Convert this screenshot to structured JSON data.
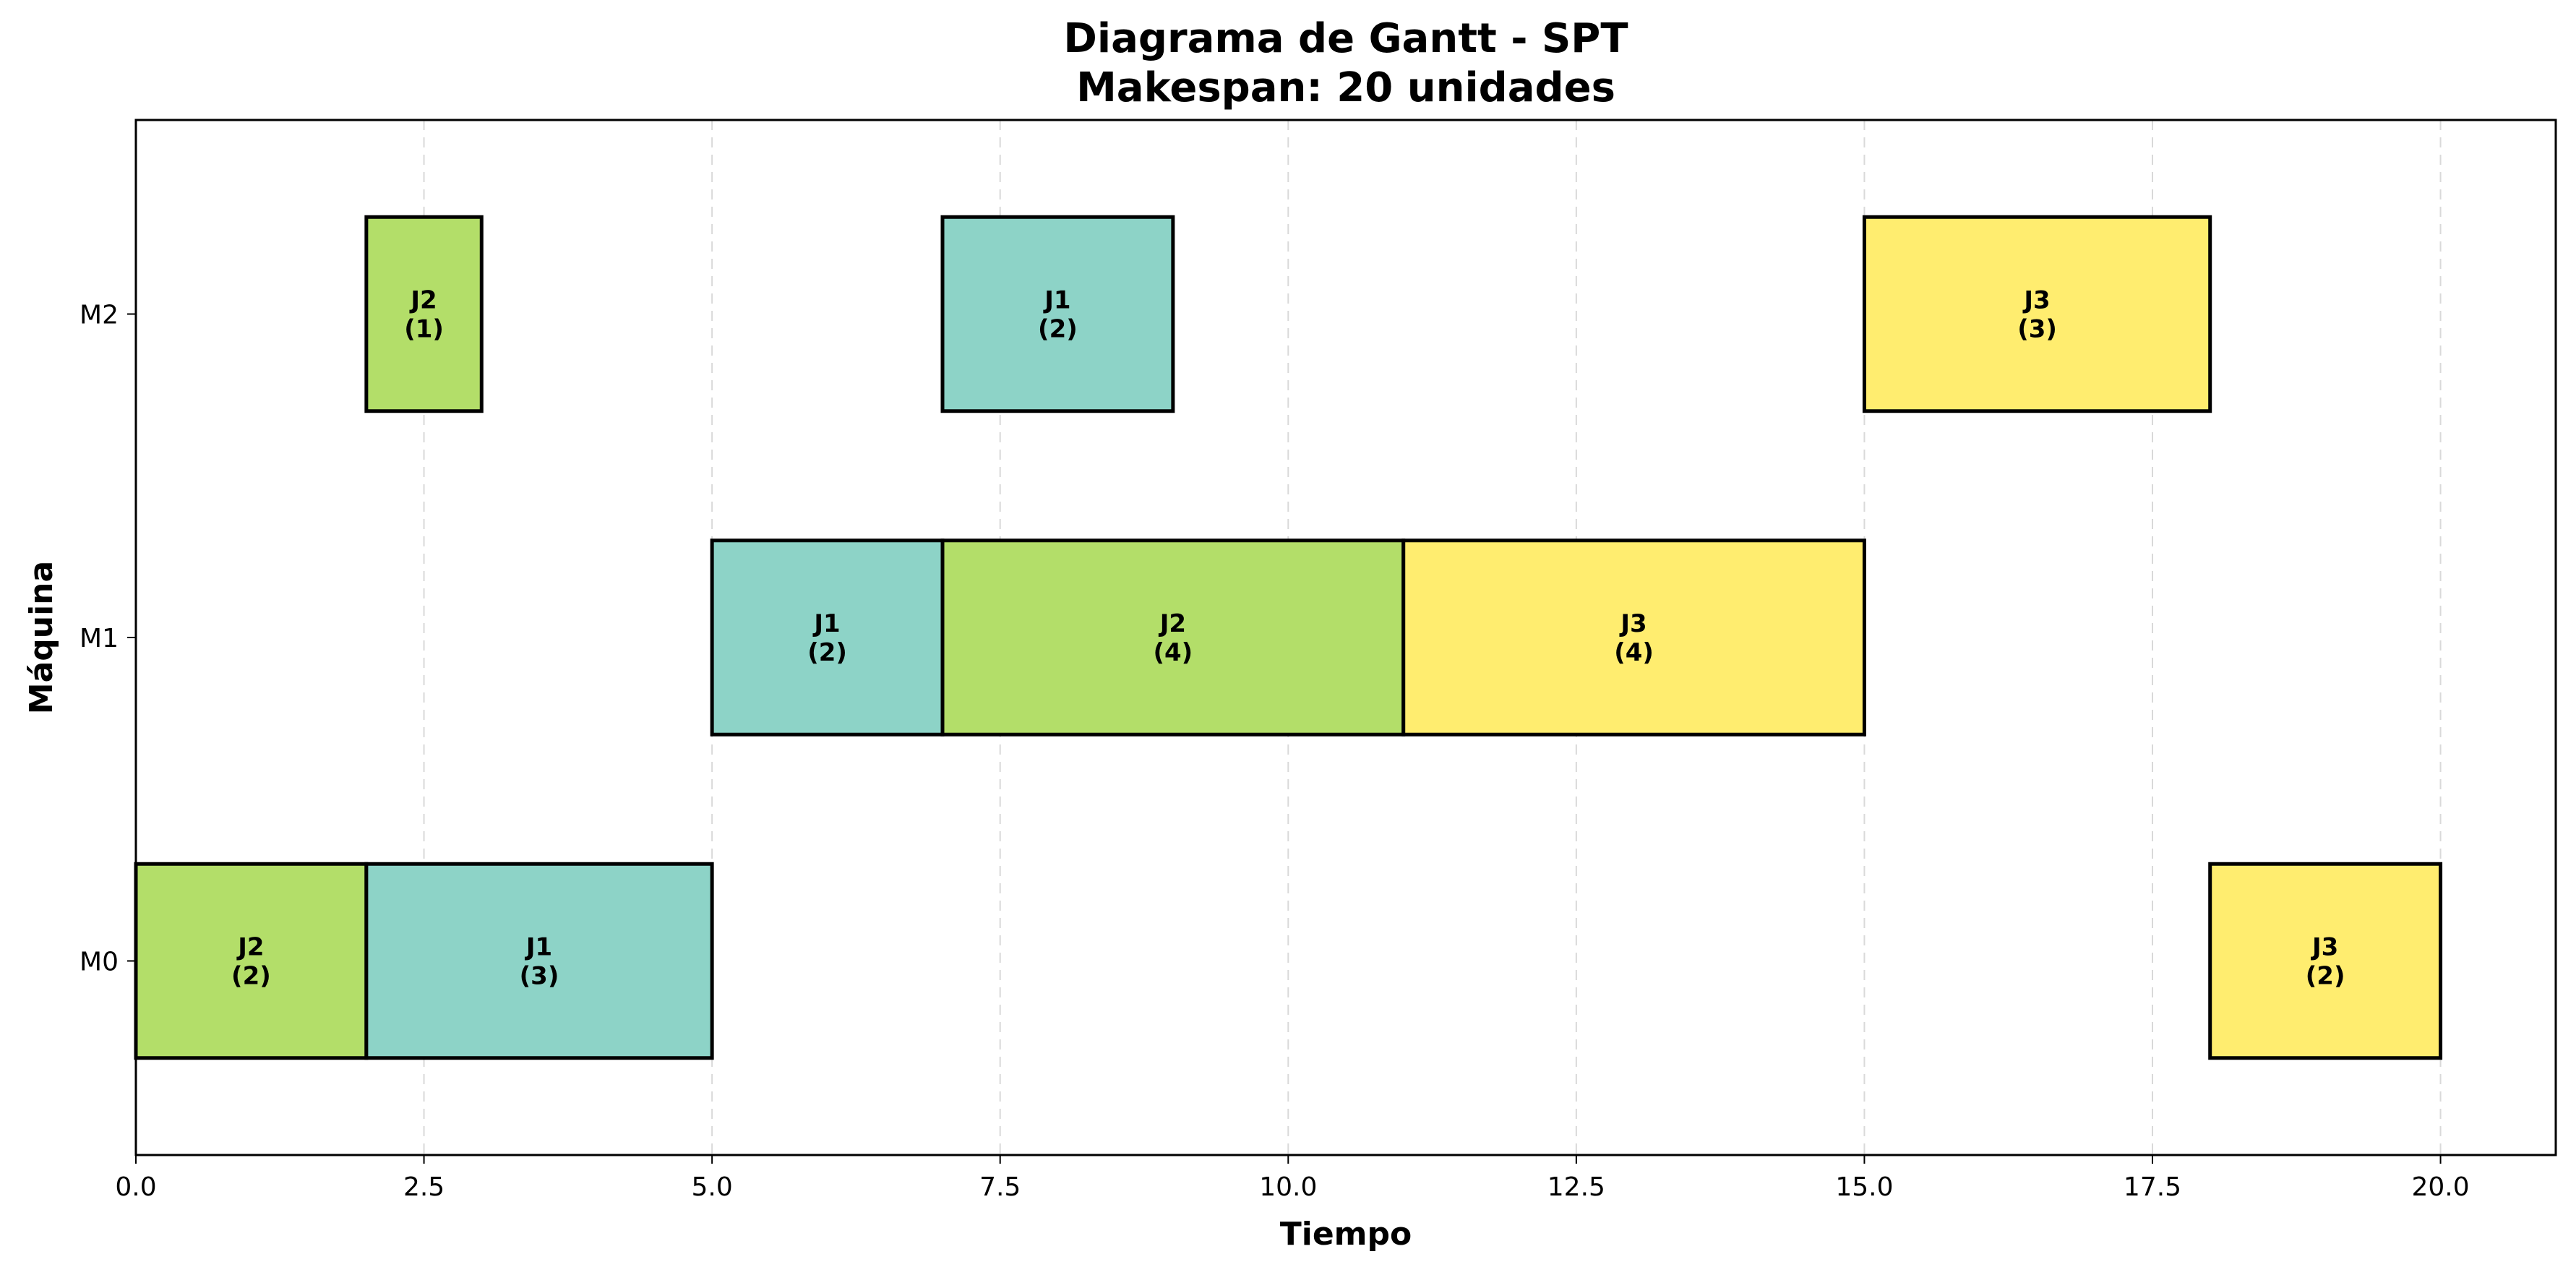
{
  "chart_data": {
    "type": "gantt",
    "title_line1": "Diagrama de Gantt - SPT",
    "title_line2": "Makespan: 20 unidades",
    "xlabel": "Tiempo",
    "ylabel": "Máquina",
    "xlim": [
      0,
      21
    ],
    "x_ticks": [
      0.0,
      2.5,
      5.0,
      7.5,
      10.0,
      12.5,
      15.0,
      17.5,
      20.0
    ],
    "x_tick_labels": [
      "0.0",
      "2.5",
      "5.0",
      "7.5",
      "10.0",
      "12.5",
      "15.0",
      "17.5",
      "20.0"
    ],
    "machines": [
      "M0",
      "M1",
      "M2"
    ],
    "grid": "vertical dashed",
    "job_colors": {
      "J1": "#8dd3c7",
      "J2": "#b3de69",
      "J3": "#ffed6f"
    },
    "tasks": [
      {
        "machine": "M0",
        "job": "J2",
        "start": 0,
        "duration": 2,
        "duration_label": "(2)"
      },
      {
        "machine": "M0",
        "job": "J1",
        "start": 2,
        "duration": 3,
        "duration_label": "(3)"
      },
      {
        "machine": "M0",
        "job": "J3",
        "start": 18,
        "duration": 2,
        "duration_label": "(2)"
      },
      {
        "machine": "M1",
        "job": "J1",
        "start": 5,
        "duration": 2,
        "duration_label": "(2)"
      },
      {
        "machine": "M1",
        "job": "J2",
        "start": 7,
        "duration": 4,
        "duration_label": "(4)"
      },
      {
        "machine": "M1",
        "job": "J3",
        "start": 11,
        "duration": 4,
        "duration_label": "(4)"
      },
      {
        "machine": "M2",
        "job": "J2",
        "start": 2,
        "duration": 1,
        "duration_label": "(1)"
      },
      {
        "machine": "M2",
        "job": "J1",
        "start": 7,
        "duration": 2,
        "duration_label": "(2)"
      },
      {
        "machine": "M2",
        "job": "J3",
        "start": 15,
        "duration": 3,
        "duration_label": "(3)"
      }
    ]
  }
}
